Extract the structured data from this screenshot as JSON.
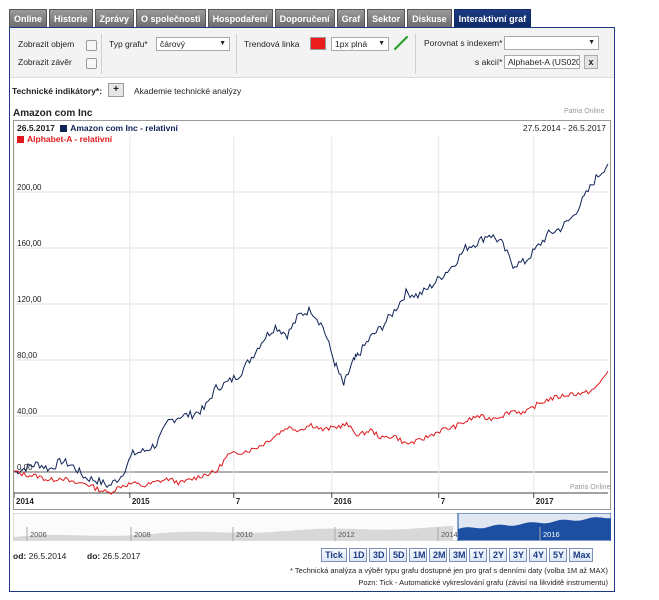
{
  "tabs": [
    "Online",
    "Historie",
    "Zprávy",
    "O společnosti",
    "Hospodaření",
    "Doporučení",
    "Graf",
    "Sektor",
    "Diskuse",
    "Interaktivní graf"
  ],
  "toolbar": {
    "show_volume": "Zobrazit objem",
    "show_close": "Zobrazit závěr",
    "chart_type_label": "Typ grafu*",
    "chart_type_value": "čárový",
    "trend_label": "Trendová linka",
    "trend_color": "#ea1c1c",
    "trend_style": "1px plná",
    "compare_label": "Porovnat s indexem*",
    "compare_value": "",
    "stock_label": "s akcií*",
    "stock_value": "Alphabet-A (US0207",
    "clear_button": "x"
  },
  "indicators": {
    "label": "Technické indikátory*:",
    "add": "+",
    "academy": "Akademie technické analýzy"
  },
  "chart": {
    "title": "Amazon com Inc",
    "watermark_top": "Patria Online",
    "watermark_bottom": "Patria Online",
    "date": "26.5.2017",
    "range": "27.5.2014 - 26.5.2017"
  },
  "navigator": {
    "years": [
      "2006",
      "2008",
      "2010",
      "2012",
      "2014",
      "2016"
    ]
  },
  "date_range": {
    "from_label": "od:",
    "from_value": "26.5.2014",
    "to_label": "do:",
    "to_value": "26.5.2017"
  },
  "range_buttons": [
    "Tick",
    "1D",
    "3D",
    "5D",
    "1M",
    "2M",
    "3M",
    "1Y",
    "2Y",
    "3Y",
    "4Y",
    "5Y",
    "Max"
  ],
  "notes": [
    "* Technická analýza a výběr typu grafu dostupné jen pro graf s denními daty (volba 1M až MAX)",
    "Pozn: Tick - Automatické vykreslování grafu (závisí na likviditě instrumentu)"
  ],
  "colors": {
    "amazon": "#0e2357",
    "alphabet": "#e0191c",
    "accent": "#1c3b84"
  },
  "chart_data": {
    "type": "line",
    "title": "Amazon com Inc",
    "y_ticks": [
      "0,00",
      "40,00",
      "80,00",
      "120,00",
      "160,00",
      "200,00"
    ],
    "x_ticks": [
      "2014",
      "2015",
      "7",
      "2016",
      "7",
      "2017"
    ],
    "ylim": [
      -15,
      225
    ],
    "grid": true,
    "legend_position": "top-left",
    "series": [
      {
        "name": "Amazon com Inc - relativní",
        "color": "#0e2357",
        "x": [
          0,
          0.02,
          0.04,
          0.06,
          0.08,
          0.1,
          0.12,
          0.14,
          0.16,
          0.18,
          0.2,
          0.22,
          0.24,
          0.26,
          0.28,
          0.3,
          0.32,
          0.34,
          0.36,
          0.38,
          0.4,
          0.42,
          0.44,
          0.46,
          0.48,
          0.5,
          0.52,
          0.54,
          0.555,
          0.57,
          0.58,
          0.6,
          0.62,
          0.64,
          0.66,
          0.68,
          0.7,
          0.72,
          0.74,
          0.76,
          0.78,
          0.8,
          0.82,
          0.84,
          0.86,
          0.88,
          0.9,
          0.92,
          0.94,
          0.96,
          0.98,
          1.0
        ],
        "values": [
          0,
          3,
          6,
          2,
          8,
          4,
          -4,
          -6,
          -10,
          -3,
          13,
          15,
          20,
          36,
          40,
          41,
          45,
          60,
          64,
          70,
          82,
          95,
          104,
          98,
          112,
          116,
          104,
          78,
          62,
          78,
          84,
          96,
          104,
          115,
          128,
          126,
          132,
          140,
          148,
          160,
          164,
          170,
          164,
          148,
          150,
          160,
          170,
          174,
          182,
          196,
          210,
          220
        ]
      },
      {
        "name": "Alphabet-A - relativní",
        "color": "#e0191c",
        "x": [
          0,
          0.02,
          0.04,
          0.06,
          0.08,
          0.1,
          0.12,
          0.14,
          0.16,
          0.18,
          0.2,
          0.22,
          0.24,
          0.26,
          0.28,
          0.3,
          0.32,
          0.34,
          0.36,
          0.38,
          0.4,
          0.42,
          0.44,
          0.46,
          0.48,
          0.5,
          0.52,
          0.54,
          0.56,
          0.58,
          0.6,
          0.62,
          0.64,
          0.66,
          0.68,
          0.7,
          0.72,
          0.74,
          0.76,
          0.78,
          0.8,
          0.82,
          0.84,
          0.86,
          0.88,
          0.9,
          0.92,
          0.94,
          0.96,
          0.98,
          1.0
        ],
        "values": [
          0,
          -2,
          -3,
          -6,
          -4,
          -8,
          -8,
          -12,
          -15,
          -10,
          -8,
          -10,
          -7,
          -5,
          -8,
          -5,
          -2,
          0,
          12,
          14,
          16,
          20,
          26,
          32,
          30,
          34,
          30,
          32,
          34,
          26,
          30,
          24,
          26,
          20,
          22,
          26,
          30,
          32,
          36,
          40,
          38,
          40,
          44,
          42,
          48,
          52,
          54,
          56,
          56,
          60,
          72
        ]
      }
    ]
  }
}
